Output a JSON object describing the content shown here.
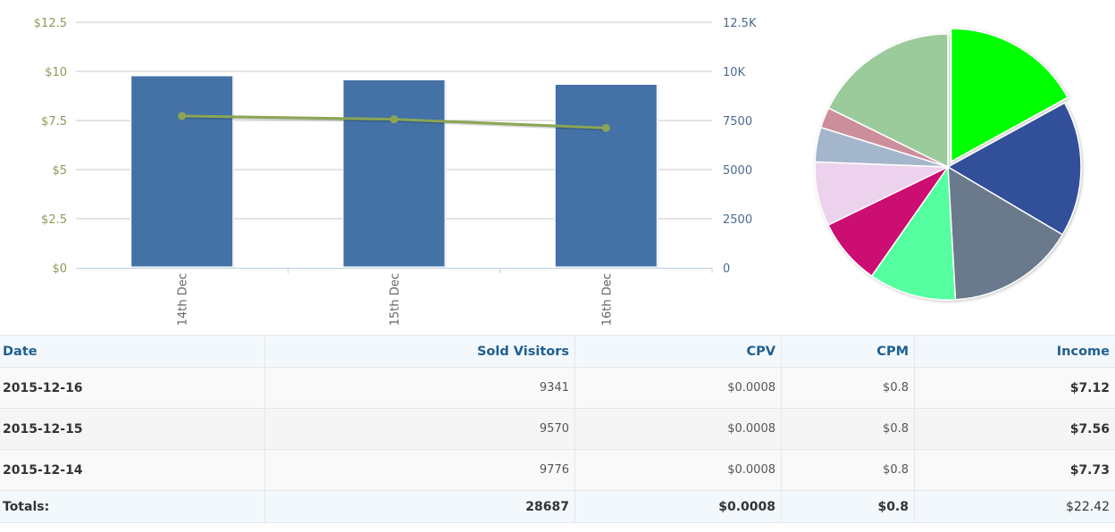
{
  "chart_data": [
    {
      "type": "bar+line",
      "title": "",
      "categories": [
        "14th Dec",
        "15th Dec",
        "16th Dec"
      ],
      "series": [
        {
          "name": "Sold Visitors",
          "kind": "bar",
          "axis": "right",
          "color": "#4471a6",
          "values": [
            9776,
            9570,
            9341
          ]
        },
        {
          "name": "Income",
          "kind": "line",
          "axis": "left",
          "color": "#8ba554",
          "values": [
            7.73,
            7.56,
            7.12
          ]
        }
      ],
      "left_axis": {
        "range": [
          0,
          12.5
        ],
        "ticks": [
          {
            "value": 0,
            "label": "$0"
          },
          {
            "value": 2.5,
            "label": "$2.5"
          },
          {
            "value": 5,
            "label": "$5"
          },
          {
            "value": 7.5,
            "label": "$7.5"
          },
          {
            "value": 10,
            "label": "$10"
          },
          {
            "value": 12.5,
            "label": "$12.5"
          }
        ]
      },
      "right_axis": {
        "range": [
          0,
          12500
        ],
        "ticks": [
          {
            "value": 0,
            "label": "0"
          },
          {
            "value": 2500,
            "label": "2500"
          },
          {
            "value": 5000,
            "label": "5000"
          },
          {
            "value": 7500,
            "label": "7500"
          },
          {
            "value": 10000,
            "label": "10K"
          },
          {
            "value": 12500,
            "label": "12.5K"
          }
        ]
      },
      "grid": true,
      "xlabel": "",
      "ylabel": ""
    },
    {
      "type": "pie",
      "title": "",
      "slices": [
        {
          "value": 17.0,
          "color": "#00ff00",
          "exploded": true
        },
        {
          "value": 16.5,
          "color": "#304f99",
          "exploded": false
        },
        {
          "value": 15.6,
          "color": "#6a7a8c",
          "exploded": false
        },
        {
          "value": 10.6,
          "color": "#55ff9f",
          "exploded": false
        },
        {
          "value": 8.1,
          "color": "#cc1172",
          "exploded": false
        },
        {
          "value": 7.8,
          "color": "#edd2ed",
          "exploded": false
        },
        {
          "value": 4.2,
          "color": "#a4b6cc",
          "exploded": false
        },
        {
          "value": 2.5,
          "color": "#cc8e9a",
          "exploded": false
        },
        {
          "value": 17.7,
          "color": "#9ccb9b",
          "exploded": false
        }
      ]
    }
  ],
  "table": {
    "headers": [
      "Date",
      "Sold Visitors",
      "CPV",
      "CPM",
      "Income"
    ],
    "rows": [
      {
        "date": "2015-12-16",
        "sold_visitors": "9341",
        "cpv": "$0.0008",
        "cpm": "$0.8",
        "income": "$7.12"
      },
      {
        "date": "2015-12-15",
        "sold_visitors": "9570",
        "cpv": "$0.0008",
        "cpm": "$0.8",
        "income": "$7.56"
      },
      {
        "date": "2015-12-14",
        "sold_visitors": "9776",
        "cpv": "$0.0008",
        "cpm": "$0.8",
        "income": "$7.73"
      }
    ],
    "totals": {
      "label": "Totals:",
      "sold_visitors": "28687",
      "cpv": "$0.0008",
      "cpm": "$0.8",
      "income": "$22.42"
    }
  }
}
